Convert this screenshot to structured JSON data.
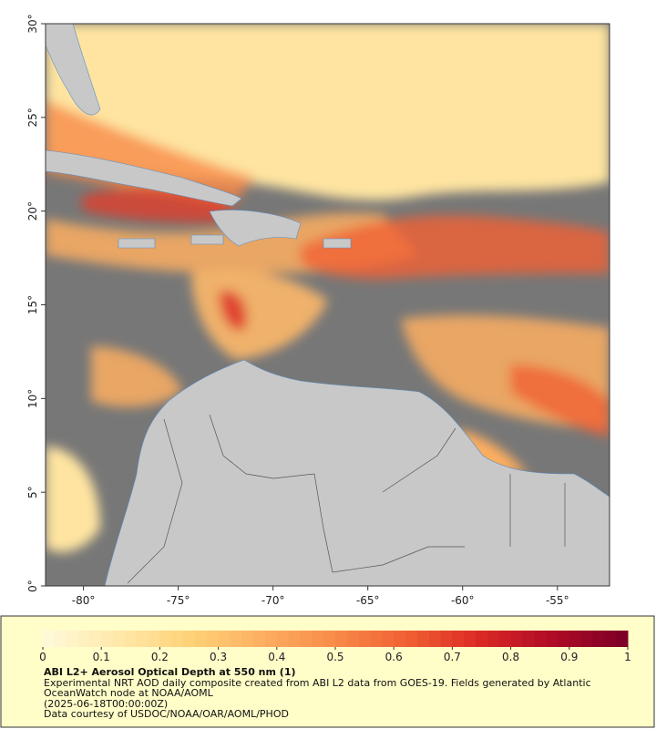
{
  "map": {
    "xlim": [
      -82,
      -52.25
    ],
    "ylim": [
      0,
      30
    ],
    "xticks": [
      {
        "value": -80,
        "label": "-80°"
      },
      {
        "value": -75,
        "label": "-75°"
      },
      {
        "value": -70,
        "label": "-70°"
      },
      {
        "value": -65,
        "label": "-65°"
      },
      {
        "value": -60,
        "label": "-60°"
      },
      {
        "value": -55,
        "label": "-55°"
      }
    ],
    "yticks": [
      {
        "value": 0,
        "label": "0°"
      },
      {
        "value": 5,
        "label": "5°"
      },
      {
        "value": 10,
        "label": "10°"
      },
      {
        "value": 15,
        "label": "15°"
      },
      {
        "value": 20,
        "label": "20°"
      },
      {
        "value": 25,
        "label": "25°"
      },
      {
        "value": 30,
        "label": "30°"
      }
    ]
  },
  "colorbar": {
    "lim": [
      0,
      1
    ],
    "ticks": [
      0,
      0.1,
      0.2,
      0.3,
      0.4,
      0.5,
      0.6,
      0.7,
      0.8,
      0.9,
      1
    ],
    "colors": [
      "#fff8d8",
      "#ffe8a8",
      "#fed176",
      "#fdae61",
      "#f88b48",
      "#f16033",
      "#dc2a25",
      "#b10c26",
      "#7f0026"
    ]
  },
  "legend": {
    "title": "ABI L2+ Aerosol Optical Depth at 550 nm (1)",
    "description": "Experimental NRT AOD daily composite created from ABI L2 data from GOES-19. Fields generated by Atlantic OceanWatch node at NOAA/AOML",
    "date": "(2025-06-18T00:00:00Z)",
    "credit": "Data courtesy of USDOC/NOAA/OAR/AOML/PHOD"
  }
}
